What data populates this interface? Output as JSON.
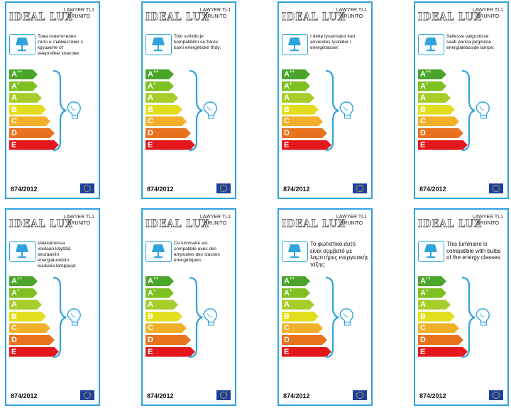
{
  "brand": "IDEAL LUX",
  "model_line1": "LAWYER TL1",
  "model_line2": "BRUNITO",
  "regulation": "874/2012",
  "classes": [
    {
      "base": "A",
      "sup": "++",
      "color": "#4aa52a"
    },
    {
      "base": "A",
      "sup": "+",
      "color": "#7ec022"
    },
    {
      "base": "A",
      "sup": "",
      "color": "#a6cd2a"
    },
    {
      "base": "B",
      "sup": "",
      "color": "#e2de1c"
    },
    {
      "base": "C",
      "sup": "",
      "color": "#f2b02a"
    },
    {
      "base": "D",
      "sup": "",
      "color": "#e9721f"
    },
    {
      "base": "E",
      "sup": "",
      "color": "#e4181c"
    }
  ],
  "colors": {
    "border": "#2ea3dc",
    "eu_flag": "#1f3fa0",
    "star": "#f5d90a"
  },
  "labels": [
    {
      "description": "Това осветително\nтяло е съвместимо с\nкрушките от\nенергийни класове:"
    },
    {
      "description": "Toto svítidlo je\nkompatibilní se žárov-\nkami energetické třídy:"
    },
    {
      "description": "I dette lysarmatur kan\nanvendes lyskilder i\nenergiklasser:"
    },
    {
      "description": "Sellesse valgustisse\nsaab panna järgmiste\nenergiaklasside lampe:"
    },
    {
      "description": "Valaisimessa\nvoidaan käyttää\nseuraaviin\nenergialuokkiin\nkuuluvia lamppuja:"
    },
    {
      "description": "Ce luminaire est\ncompatible avec des\nampoules des classes\nénergétiques:"
    },
    {
      "description": "Το φωτιστικό αυτό\nείναι συμβατό με\nλαμπτήρες ενεργειακής\nτάξης:"
    },
    {
      "description": "This luminaire is\ncompatible with bulbs\nof the energy classes:"
    }
  ]
}
